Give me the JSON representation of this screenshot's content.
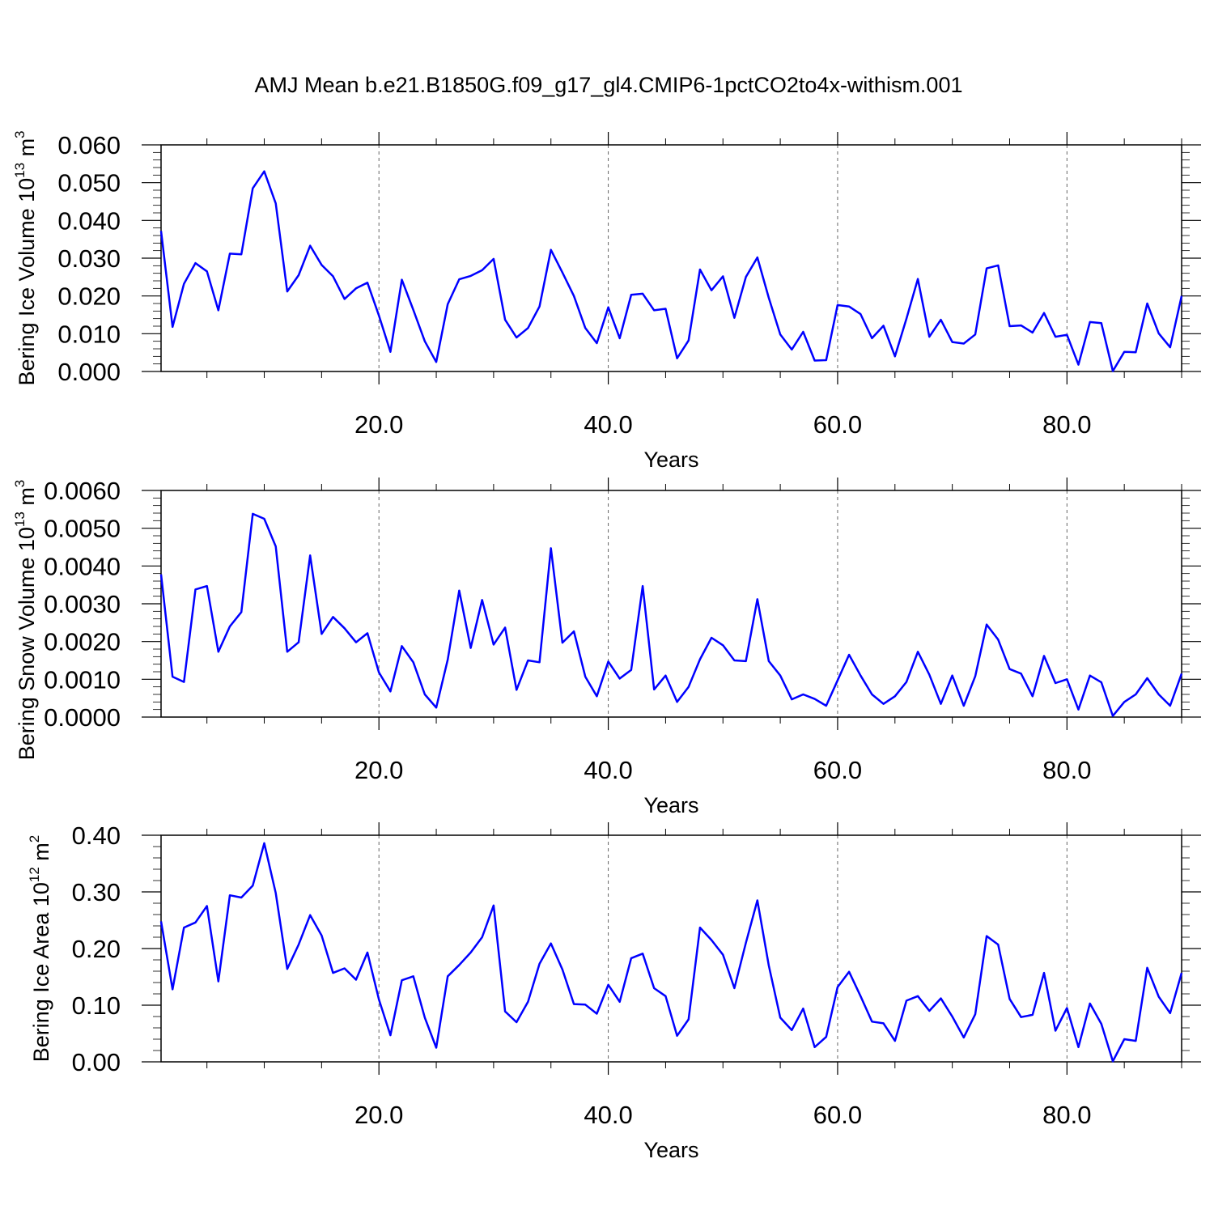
{
  "title": "AMJ Mean b.e21.B1850G.f09_g17_gl4.CMIP6-1pctCO2to4x-withism.001",
  "chart_data": [
    {
      "type": "line",
      "xlabel": "Years",
      "ylabel": "Bering Ice Volume 10",
      "ylabel_exp": "13",
      "ylabel_unit": "m",
      "ylabel_unit_exp": "3",
      "xlim": [
        1,
        90
      ],
      "ylim": [
        0,
        0.06
      ],
      "yticks": [
        0,
        0.01,
        0.02,
        0.03,
        0.04,
        0.05,
        0.06
      ],
      "ytick_labels": [
        "0.000",
        "0.010",
        "0.020",
        "0.030",
        "0.040",
        "0.050",
        "0.060"
      ],
      "xticks": [
        20,
        40,
        60,
        80
      ],
      "xtick_labels": [
        "20.0",
        "40.0",
        "60.0",
        "80.0"
      ],
      "grid": "vertical dashed at major x ticks",
      "line_color": "#0000ff",
      "x_start": 1,
      "values": [
        0.0372,
        0.0118,
        0.0232,
        0.0287,
        0.0265,
        0.0162,
        0.0312,
        0.031,
        0.0485,
        0.053,
        0.0445,
        0.0212,
        0.0255,
        0.0333,
        0.0282,
        0.0252,
        0.0192,
        0.022,
        0.0235,
        0.0148,
        0.0052,
        0.0243,
        0.0163,
        0.008,
        0.0025,
        0.0178,
        0.0244,
        0.0253,
        0.0268,
        0.0298,
        0.0137,
        0.009,
        0.0115,
        0.0172,
        0.0322,
        0.0262,
        0.02,
        0.0115,
        0.0075,
        0.017,
        0.0088,
        0.0203,
        0.0206,
        0.0162,
        0.0166,
        0.0035,
        0.0082,
        0.027,
        0.0215,
        0.0252,
        0.0142,
        0.025,
        0.0302,
        0.0195,
        0.0098,
        0.0058,
        0.0105,
        0.0029,
        0.003,
        0.0176,
        0.0172,
        0.0152,
        0.0088,
        0.0121,
        0.004,
        0.014,
        0.0245,
        0.0092,
        0.0137,
        0.0078,
        0.0074,
        0.0098,
        0.0273,
        0.0281,
        0.012,
        0.0122,
        0.0103,
        0.0155,
        0.0092,
        0.0097,
        0.0018,
        0.0131,
        0.0128,
        0.0001,
        0.0052,
        0.0051,
        0.018,
        0.0101,
        0.0064,
        0.02
      ]
    },
    {
      "type": "line",
      "xlabel": "Years",
      "ylabel": "Bering Snow Volume 10",
      "ylabel_exp": "13",
      "ylabel_unit": "m",
      "ylabel_unit_exp": "3",
      "xlim": [
        1,
        90
      ],
      "ylim": [
        0,
        0.006
      ],
      "yticks": [
        0,
        0.001,
        0.002,
        0.003,
        0.004,
        0.005,
        0.006
      ],
      "ytick_labels": [
        "0.0000",
        "0.0010",
        "0.0020",
        "0.0030",
        "0.0040",
        "0.0050",
        "0.0060"
      ],
      "xticks": [
        20,
        40,
        60,
        80
      ],
      "xtick_labels": [
        "20.0",
        "40.0",
        "60.0",
        "80.0"
      ],
      "grid": "vertical dashed at major x ticks",
      "line_color": "#0000ff",
      "x_start": 1,
      "values": [
        0.00378,
        0.00107,
        0.00093,
        0.00338,
        0.00347,
        0.00173,
        0.0024,
        0.00278,
        0.00538,
        0.00525,
        0.00452,
        0.00173,
        0.00198,
        0.00428,
        0.0022,
        0.00265,
        0.00235,
        0.00198,
        0.00222,
        0.00118,
        0.00068,
        0.00188,
        0.00145,
        0.0006,
        0.00025,
        0.00152,
        0.00335,
        0.00183,
        0.0031,
        0.00192,
        0.00237,
        0.00072,
        0.0015,
        0.00145,
        0.00447,
        0.00197,
        0.00227,
        0.00107,
        0.00055,
        0.00147,
        0.00102,
        0.00125,
        0.00347,
        0.00073,
        0.0011,
        0.0004,
        0.0008,
        0.00153,
        0.0021,
        0.0019,
        0.0015,
        0.00148,
        0.00312,
        0.00148,
        0.0011,
        0.00047,
        0.0006,
        0.00048,
        0.0003,
        0.00097,
        0.00165,
        0.0011,
        0.0006,
        0.00035,
        0.00055,
        0.00093,
        0.00173,
        0.00112,
        0.00035,
        0.0011,
        0.0003,
        0.00108,
        0.00245,
        0.00205,
        0.00127,
        0.00115,
        0.00055,
        0.00162,
        0.0009,
        0.001,
        0.0002,
        0.0011,
        0.00092,
        3e-05,
        0.0004,
        0.0006,
        0.00103,
        0.0006,
        0.0003,
        0.00115
      ]
    },
    {
      "type": "line",
      "xlabel": "Years",
      "ylabel": "Bering Ice Area 10",
      "ylabel_exp": "12",
      "ylabel_unit": "m",
      "ylabel_unit_exp": "2",
      "xlim": [
        1,
        90
      ],
      "ylim": [
        0,
        0.4
      ],
      "yticks": [
        0,
        0.1,
        0.2,
        0.3,
        0.4
      ],
      "ytick_labels": [
        "0.00",
        "0.10",
        "0.20",
        "0.30",
        "0.40"
      ],
      "xticks": [
        20,
        40,
        60,
        80
      ],
      "xtick_labels": [
        "20.0",
        "40.0",
        "60.0",
        "80.0"
      ],
      "grid": "vertical dashed at major x ticks",
      "line_color": "#0000ff",
      "x_start": 1,
      "values": [
        0.248,
        0.128,
        0.237,
        0.246,
        0.275,
        0.142,
        0.294,
        0.29,
        0.311,
        0.386,
        0.298,
        0.164,
        0.207,
        0.259,
        0.223,
        0.157,
        0.165,
        0.145,
        0.193,
        0.11,
        0.047,
        0.144,
        0.151,
        0.078,
        0.025,
        0.151,
        0.171,
        0.193,
        0.22,
        0.276,
        0.089,
        0.07,
        0.106,
        0.173,
        0.209,
        0.163,
        0.102,
        0.101,
        0.085,
        0.136,
        0.106,
        0.183,
        0.191,
        0.13,
        0.116,
        0.046,
        0.075,
        0.237,
        0.215,
        0.189,
        0.13,
        0.21,
        0.285,
        0.17,
        0.078,
        0.056,
        0.094,
        0.026,
        0.044,
        0.132,
        0.159,
        0.116,
        0.071,
        0.068,
        0.037,
        0.108,
        0.116,
        0.09,
        0.112,
        0.08,
        0.043,
        0.084,
        0.222,
        0.207,
        0.111,
        0.079,
        0.083,
        0.157,
        0.055,
        0.095,
        0.026,
        0.103,
        0.067,
        0.001,
        0.04,
        0.037,
        0.166,
        0.115,
        0.086,
        0.157
      ]
    }
  ]
}
